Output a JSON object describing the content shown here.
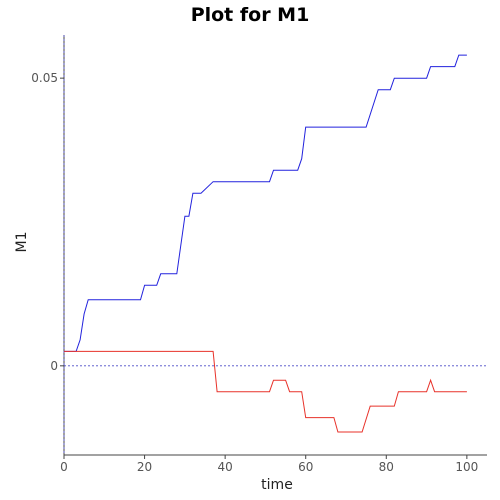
{
  "chart_data": {
    "type": "line",
    "title": "Plot for M1",
    "xlabel": "time",
    "ylabel": "M1",
    "xlim": [
      0,
      105
    ],
    "ylim": [
      -0.0155,
      0.0575
    ],
    "x_ticks": [
      0,
      20,
      40,
      60,
      80,
      100
    ],
    "y_ticks": [
      0,
      0.05
    ],
    "y_tick_labels": [
      "0",
      "0.05"
    ],
    "zero_reference_lines": true,
    "series": [
      {
        "color": "#2222dd",
        "x": [
          0,
          3,
          4,
          5,
          6,
          19,
          20,
          23,
          24,
          28,
          30,
          31,
          32,
          34,
          37,
          38,
          51,
          52,
          58,
          59,
          60,
          75,
          78,
          81,
          82,
          90,
          91,
          97,
          98,
          100
        ],
        "y": [
          0.0025,
          0.0025,
          0.0045,
          0.009,
          0.0115,
          0.0115,
          0.014,
          0.014,
          0.016,
          0.016,
          0.026,
          0.026,
          0.03,
          0.03,
          0.032,
          0.032,
          0.032,
          0.034,
          0.034,
          0.036,
          0.0415,
          0.0415,
          0.048,
          0.048,
          0.05,
          0.05,
          0.052,
          0.052,
          0.054,
          0.054
        ]
      },
      {
        "color": "#e8322a",
        "x": [
          0,
          37,
          38,
          51,
          52,
          55,
          56,
          59,
          60,
          67,
          68,
          74,
          76,
          82,
          83,
          90,
          91,
          92,
          100
        ],
        "y": [
          0.0025,
          0.0025,
          -0.0045,
          -0.0045,
          -0.0025,
          -0.0025,
          -0.0045,
          -0.0045,
          -0.009,
          -0.009,
          -0.0115,
          -0.0115,
          -0.007,
          -0.007,
          -0.0045,
          -0.0045,
          -0.0025,
          -0.0045,
          -0.0045
        ]
      }
    ]
  }
}
